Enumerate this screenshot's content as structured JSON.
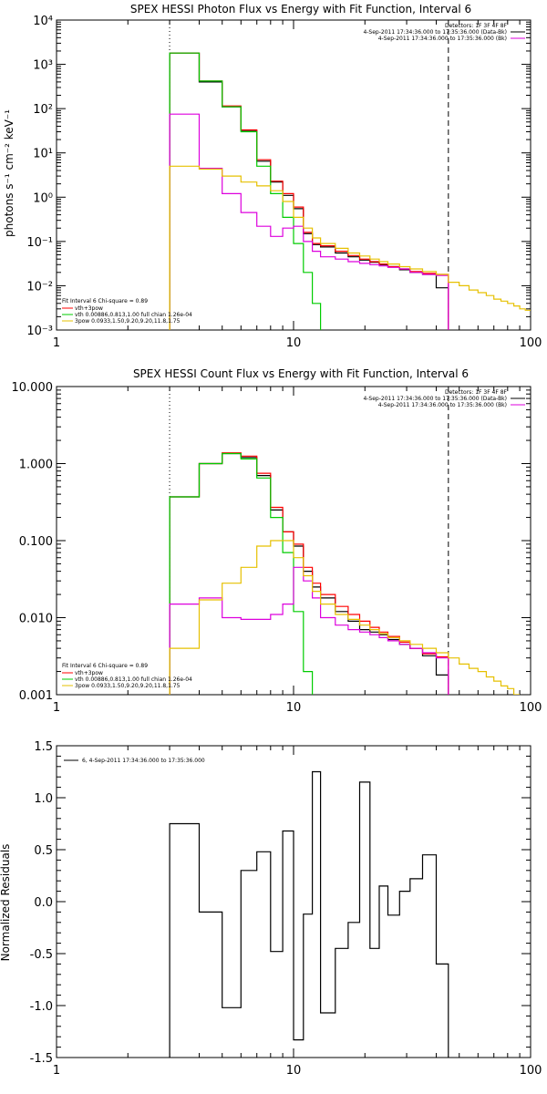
{
  "colors": {
    "black": "#000000",
    "red": "#ff0000",
    "green": "#00cc00",
    "yellow": "#e6c000",
    "magenta": "#dd00dd"
  },
  "chart_data": [
    {
      "type": "line",
      "title": "SPEX HESSI Photon Flux vs Energy with Fit Function, Interval 6",
      "xlabel": "",
      "ylabel": "photons s⁻¹ cm⁻² keV⁻¹",
      "xscale": "log",
      "yscale": "log",
      "xlim": [
        1,
        100
      ],
      "ylim": [
        0.001,
        10000
      ],
      "xticks": [
        1,
        10,
        100
      ],
      "xtick_labels": [
        "1",
        "10",
        "100"
      ],
      "yticks": [
        0.001,
        0.01,
        0.1,
        1,
        10,
        100,
        1000,
        10000
      ],
      "ytick_labels": [
        "10⁻³",
        "10⁻²",
        "10⁻¹",
        "10⁰",
        "10¹",
        "10²",
        "10³",
        "10⁴"
      ],
      "vlines": [
        {
          "x": 3,
          "style": "dotted"
        },
        {
          "x": 45,
          "style": "dashed"
        }
      ],
      "legend_tr": [
        "Detectors: 1F 3F 4F 8F",
        "4-Sep-2011 17:34:36.000 to 17:35:36.000 (Data-Bk)",
        "4-Sep-2011 17:34:36.000 to 17:35:36.000 (Bk)"
      ],
      "legend_bl_header": "Fit Interval 6   Chi-square = 0.89",
      "legend_bl": [
        "vth+3pow",
        "vth 0.00886,0.813,1.00  full chian 1.26e-04",
        "3pow 0.0933,1.50,9.20,9.20,11.8,1.75"
      ],
      "series": [
        {
          "color": "black",
          "edges": [
            3,
            4,
            5,
            6,
            7,
            8,
            9,
            10,
            11,
            12,
            13,
            15,
            17,
            19,
            21,
            23,
            25,
            28,
            31,
            35,
            40,
            45
          ],
          "values": [
            1800,
            400,
            110,
            32,
            6.5,
            2.2,
            1.1,
            0.55,
            0.15,
            0.085,
            0.075,
            0.055,
            0.045,
            0.038,
            0.034,
            0.03,
            0.027,
            0.023,
            0.02,
            0.018,
            0.009
          ]
        },
        {
          "color": "red",
          "edges": [
            3,
            4,
            5,
            6,
            7,
            8,
            9,
            10,
            11,
            12,
            13,
            15,
            17,
            19,
            21,
            23,
            25,
            28,
            31,
            35,
            40,
            45
          ],
          "values": [
            1800,
            420,
            115,
            33,
            7,
            2.3,
            1.2,
            0.6,
            0.16,
            0.09,
            0.08,
            0.06,
            0.048,
            0.04,
            0.035,
            0.031,
            0.027,
            0.024,
            0.021,
            0.019,
            0.018
          ]
        },
        {
          "color": "green",
          "edges": [
            3,
            4,
            5,
            6,
            7,
            8,
            9,
            10,
            11,
            12,
            13,
            14
          ],
          "values": [
            1800,
            420,
            110,
            30,
            5,
            1.2,
            0.35,
            0.09,
            0.02,
            0.004,
            0.0009
          ]
        },
        {
          "color": "magenta",
          "edges": [
            3,
            4,
            5,
            6,
            7,
            8,
            9,
            10,
            11,
            12,
            13,
            15,
            17,
            19,
            21,
            23,
            25,
            28,
            31,
            35,
            40,
            45
          ],
          "values": [
            75,
            4.5,
            1.2,
            0.45,
            0.22,
            0.13,
            0.2,
            0.22,
            0.1,
            0.06,
            0.045,
            0.04,
            0.035,
            0.032,
            0.03,
            0.028,
            0.026,
            0.024,
            0.02,
            0.018,
            0.017
          ]
        },
        {
          "color": "yellow",
          "edges": [
            3,
            4,
            5,
            6,
            7,
            8,
            9,
            10,
            11,
            12,
            13,
            15,
            17,
            19,
            21,
            23,
            25,
            28,
            31,
            35,
            40,
            45,
            50,
            55,
            60,
            65,
            70,
            75,
            80,
            85,
            90,
            95,
            100
          ],
          "values": [
            5,
            4.3,
            3,
            2.2,
            1.8,
            1.4,
            0.8,
            0.35,
            0.2,
            0.12,
            0.09,
            0.07,
            0.055,
            0.047,
            0.04,
            0.035,
            0.031,
            0.027,
            0.024,
            0.021,
            0.018,
            0.012,
            0.01,
            0.008,
            0.007,
            0.006,
            0.005,
            0.0045,
            0.004,
            0.0035,
            0.003,
            0.0028
          ]
        }
      ]
    },
    {
      "type": "line",
      "title": "SPEX HESSI Count Flux vs Energy with Fit Function, Interval 6",
      "xlabel": "",
      "ylabel": "",
      "xscale": "log",
      "yscale": "log",
      "xlim": [
        1,
        100
      ],
      "ylim": [
        0.001,
        10
      ],
      "xticks": [
        1,
        10,
        100
      ],
      "xtick_labels": [
        "1",
        "10",
        "100"
      ],
      "yticks": [
        0.001,
        0.01,
        0.1,
        1,
        10
      ],
      "ytick_labels": [
        "0.001",
        "0.010",
        "0.100",
        "1.000",
        "10.000"
      ],
      "vlines": [
        {
          "x": 3,
          "style": "dotted"
        },
        {
          "x": 45,
          "style": "dashed"
        }
      ],
      "legend_tr": [
        "Detectors: 1F 3F 4F 8F",
        "4-Sep-2011 17:34:36.000 to 17:35:36.000 (Data-Bk)",
        "4-Sep-2011 17:34:36.000 to 17:35:36.000 (Bk)"
      ],
      "legend_bl_header": "Fit Interval 6   Chi-square = 0.89",
      "legend_bl": [
        "vth+3pow",
        "vth 0.00886,0.813,1.00  full chian 1.26e-04",
        "3pow 0.0933,1.50,9.20,9.20,11.8,1.75"
      ],
      "series": [
        {
          "color": "black",
          "edges": [
            3,
            4,
            5,
            6,
            7,
            8,
            9,
            10,
            11,
            12,
            13,
            15,
            17,
            19,
            21,
            23,
            25,
            28,
            31,
            35,
            40,
            45
          ],
          "values": [
            0.37,
            1.0,
            1.35,
            1.2,
            0.7,
            0.25,
            0.13,
            0.085,
            0.04,
            0.025,
            0.018,
            0.012,
            0.009,
            0.007,
            0.0065,
            0.006,
            0.0052,
            0.0045,
            0.004,
            0.0032,
            0.0018
          ]
        },
        {
          "color": "red",
          "edges": [
            3,
            4,
            5,
            6,
            7,
            8,
            9,
            10,
            11,
            12,
            13,
            15,
            17,
            19,
            21,
            23,
            25,
            28,
            31,
            35,
            40,
            45
          ],
          "values": [
            0.37,
            1.0,
            1.38,
            1.25,
            0.75,
            0.27,
            0.13,
            0.09,
            0.045,
            0.028,
            0.02,
            0.014,
            0.011,
            0.009,
            0.0075,
            0.0065,
            0.0057,
            0.0048,
            0.004,
            0.0034,
            0.0031
          ]
        },
        {
          "color": "green",
          "edges": [
            3,
            4,
            5,
            6,
            7,
            8,
            9,
            10,
            11,
            12
          ],
          "values": [
            0.37,
            1.0,
            1.35,
            1.15,
            0.65,
            0.2,
            0.07,
            0.012,
            0.002
          ]
        },
        {
          "color": "magenta",
          "edges": [
            3,
            4,
            5,
            6,
            7,
            8,
            9,
            10,
            11,
            12,
            13,
            15,
            17,
            19,
            21,
            23,
            25,
            28,
            31,
            35,
            40,
            45
          ],
          "values": [
            0.015,
            0.018,
            0.01,
            0.0095,
            0.0095,
            0.011,
            0.015,
            0.045,
            0.03,
            0.018,
            0.01,
            0.008,
            0.007,
            0.0065,
            0.006,
            0.0055,
            0.005,
            0.0045,
            0.004,
            0.0035,
            0.003
          ]
        },
        {
          "color": "yellow",
          "edges": [
            3,
            4,
            5,
            6,
            7,
            8,
            9,
            10,
            11,
            12,
            13,
            15,
            17,
            19,
            21,
            23,
            25,
            28,
            31,
            35,
            40,
            45,
            50,
            55,
            60,
            65,
            70,
            75,
            80,
            85,
            90
          ],
          "values": [
            0.004,
            0.017,
            0.028,
            0.045,
            0.085,
            0.1,
            0.1,
            0.06,
            0.035,
            0.022,
            0.015,
            0.011,
            0.0095,
            0.008,
            0.007,
            0.0062,
            0.0055,
            0.005,
            0.0045,
            0.004,
            0.0035,
            0.003,
            0.0025,
            0.0022,
            0.002,
            0.0017,
            0.0015,
            0.0013,
            0.0012,
            0.001
          ]
        }
      ]
    },
    {
      "type": "line",
      "title": "",
      "xlabel": "",
      "ylabel": "Normalized Residuals",
      "xscale": "log",
      "yscale": "linear",
      "xlim": [
        1,
        100
      ],
      "ylim": [
        -1.5,
        1.5
      ],
      "xticks": [
        1,
        10,
        100
      ],
      "xtick_labels": [
        "1",
        "10",
        "100"
      ],
      "yticks": [
        -1.5,
        -1.0,
        -0.5,
        0.0,
        0.5,
        1.0,
        1.5
      ],
      "ytick_labels": [
        "-1.5",
        "-1.0",
        "-0.5",
        "0.0",
        "0.5",
        "1.0",
        "1.5"
      ],
      "legend_tr": [],
      "legend_tl": "6,  4-Sep-2011 17:34:36.000 to 17:35:36.000",
      "series": [
        {
          "color": "black",
          "edges": [
            3,
            4,
            5,
            6,
            7,
            8,
            9,
            10,
            11,
            12,
            13,
            15,
            17,
            19,
            21,
            23,
            25,
            28,
            31,
            35,
            40,
            45
          ],
          "values": [
            0.75,
            -0.1,
            -1.02,
            0.3,
            0.48,
            -0.48,
            0.68,
            -1.33,
            -0.12,
            1.25,
            -1.07,
            -0.45,
            -0.2,
            1.15,
            -0.45,
            0.15,
            -0.13,
            0.1,
            0.22,
            0.45,
            -0.6
          ]
        }
      ]
    }
  ]
}
